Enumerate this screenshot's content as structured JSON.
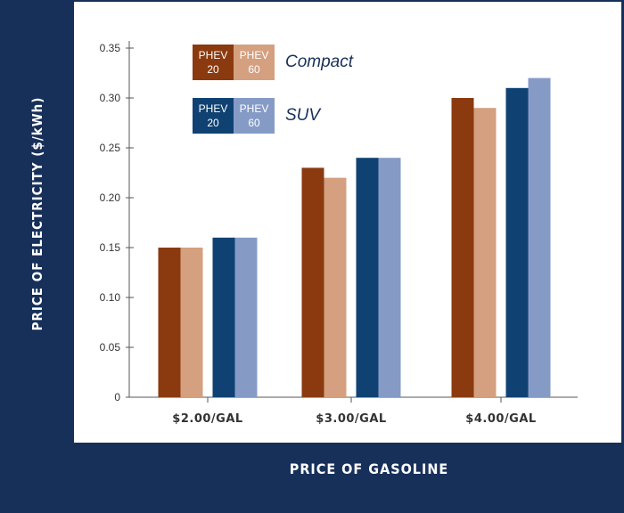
{
  "chart_data": {
    "type": "bar",
    "ylabel": "PRICE OF ELECTRICITY ($/kWh)",
    "xlabel": "PRICE OF GASOLINE",
    "ylim": [
      0,
      0.35
    ],
    "yticks": [
      "0",
      "0.05",
      "0.10",
      "0.15",
      "0.20",
      "0.25",
      "0.30",
      "0.35"
    ],
    "categories": [
      "$2.00/GAL",
      "$3.00/GAL",
      "$4.00/GAL"
    ],
    "series": [
      {
        "group": "Compact",
        "variant": "PHEV 20",
        "color": "#8b3a0f",
        "values": [
          0.15,
          0.23,
          0.3
        ]
      },
      {
        "group": "Compact",
        "variant": "PHEV 60",
        "color": "#d4a07f",
        "values": [
          0.15,
          0.22,
          0.29
        ]
      },
      {
        "group": "SUV",
        "variant": "PHEV 20",
        "color": "#0f4273",
        "values": [
          0.16,
          0.24,
          0.31
        ]
      },
      {
        "group": "SUV",
        "variant": "PHEV 60",
        "color": "#859bc6",
        "values": [
          0.16,
          0.24,
          0.32
        ]
      }
    ],
    "legend": {
      "placement": "top-left",
      "groups": [
        {
          "label": "Compact",
          "swatches": [
            {
              "line1": "PHEV",
              "line2": "20",
              "color": "#8b3a0f"
            },
            {
              "line1": "PHEV",
              "line2": "60",
              "color": "#d4a07f"
            }
          ]
        },
        {
          "label": "SUV",
          "swatches": [
            {
              "line1": "PHEV",
              "line2": "20",
              "color": "#0f4273"
            },
            {
              "line1": "PHEV",
              "line2": "60",
              "color": "#859bc6"
            }
          ]
        }
      ]
    },
    "grid": false
  },
  "colors": {
    "frame": "#17305a",
    "axis": "#555555"
  }
}
